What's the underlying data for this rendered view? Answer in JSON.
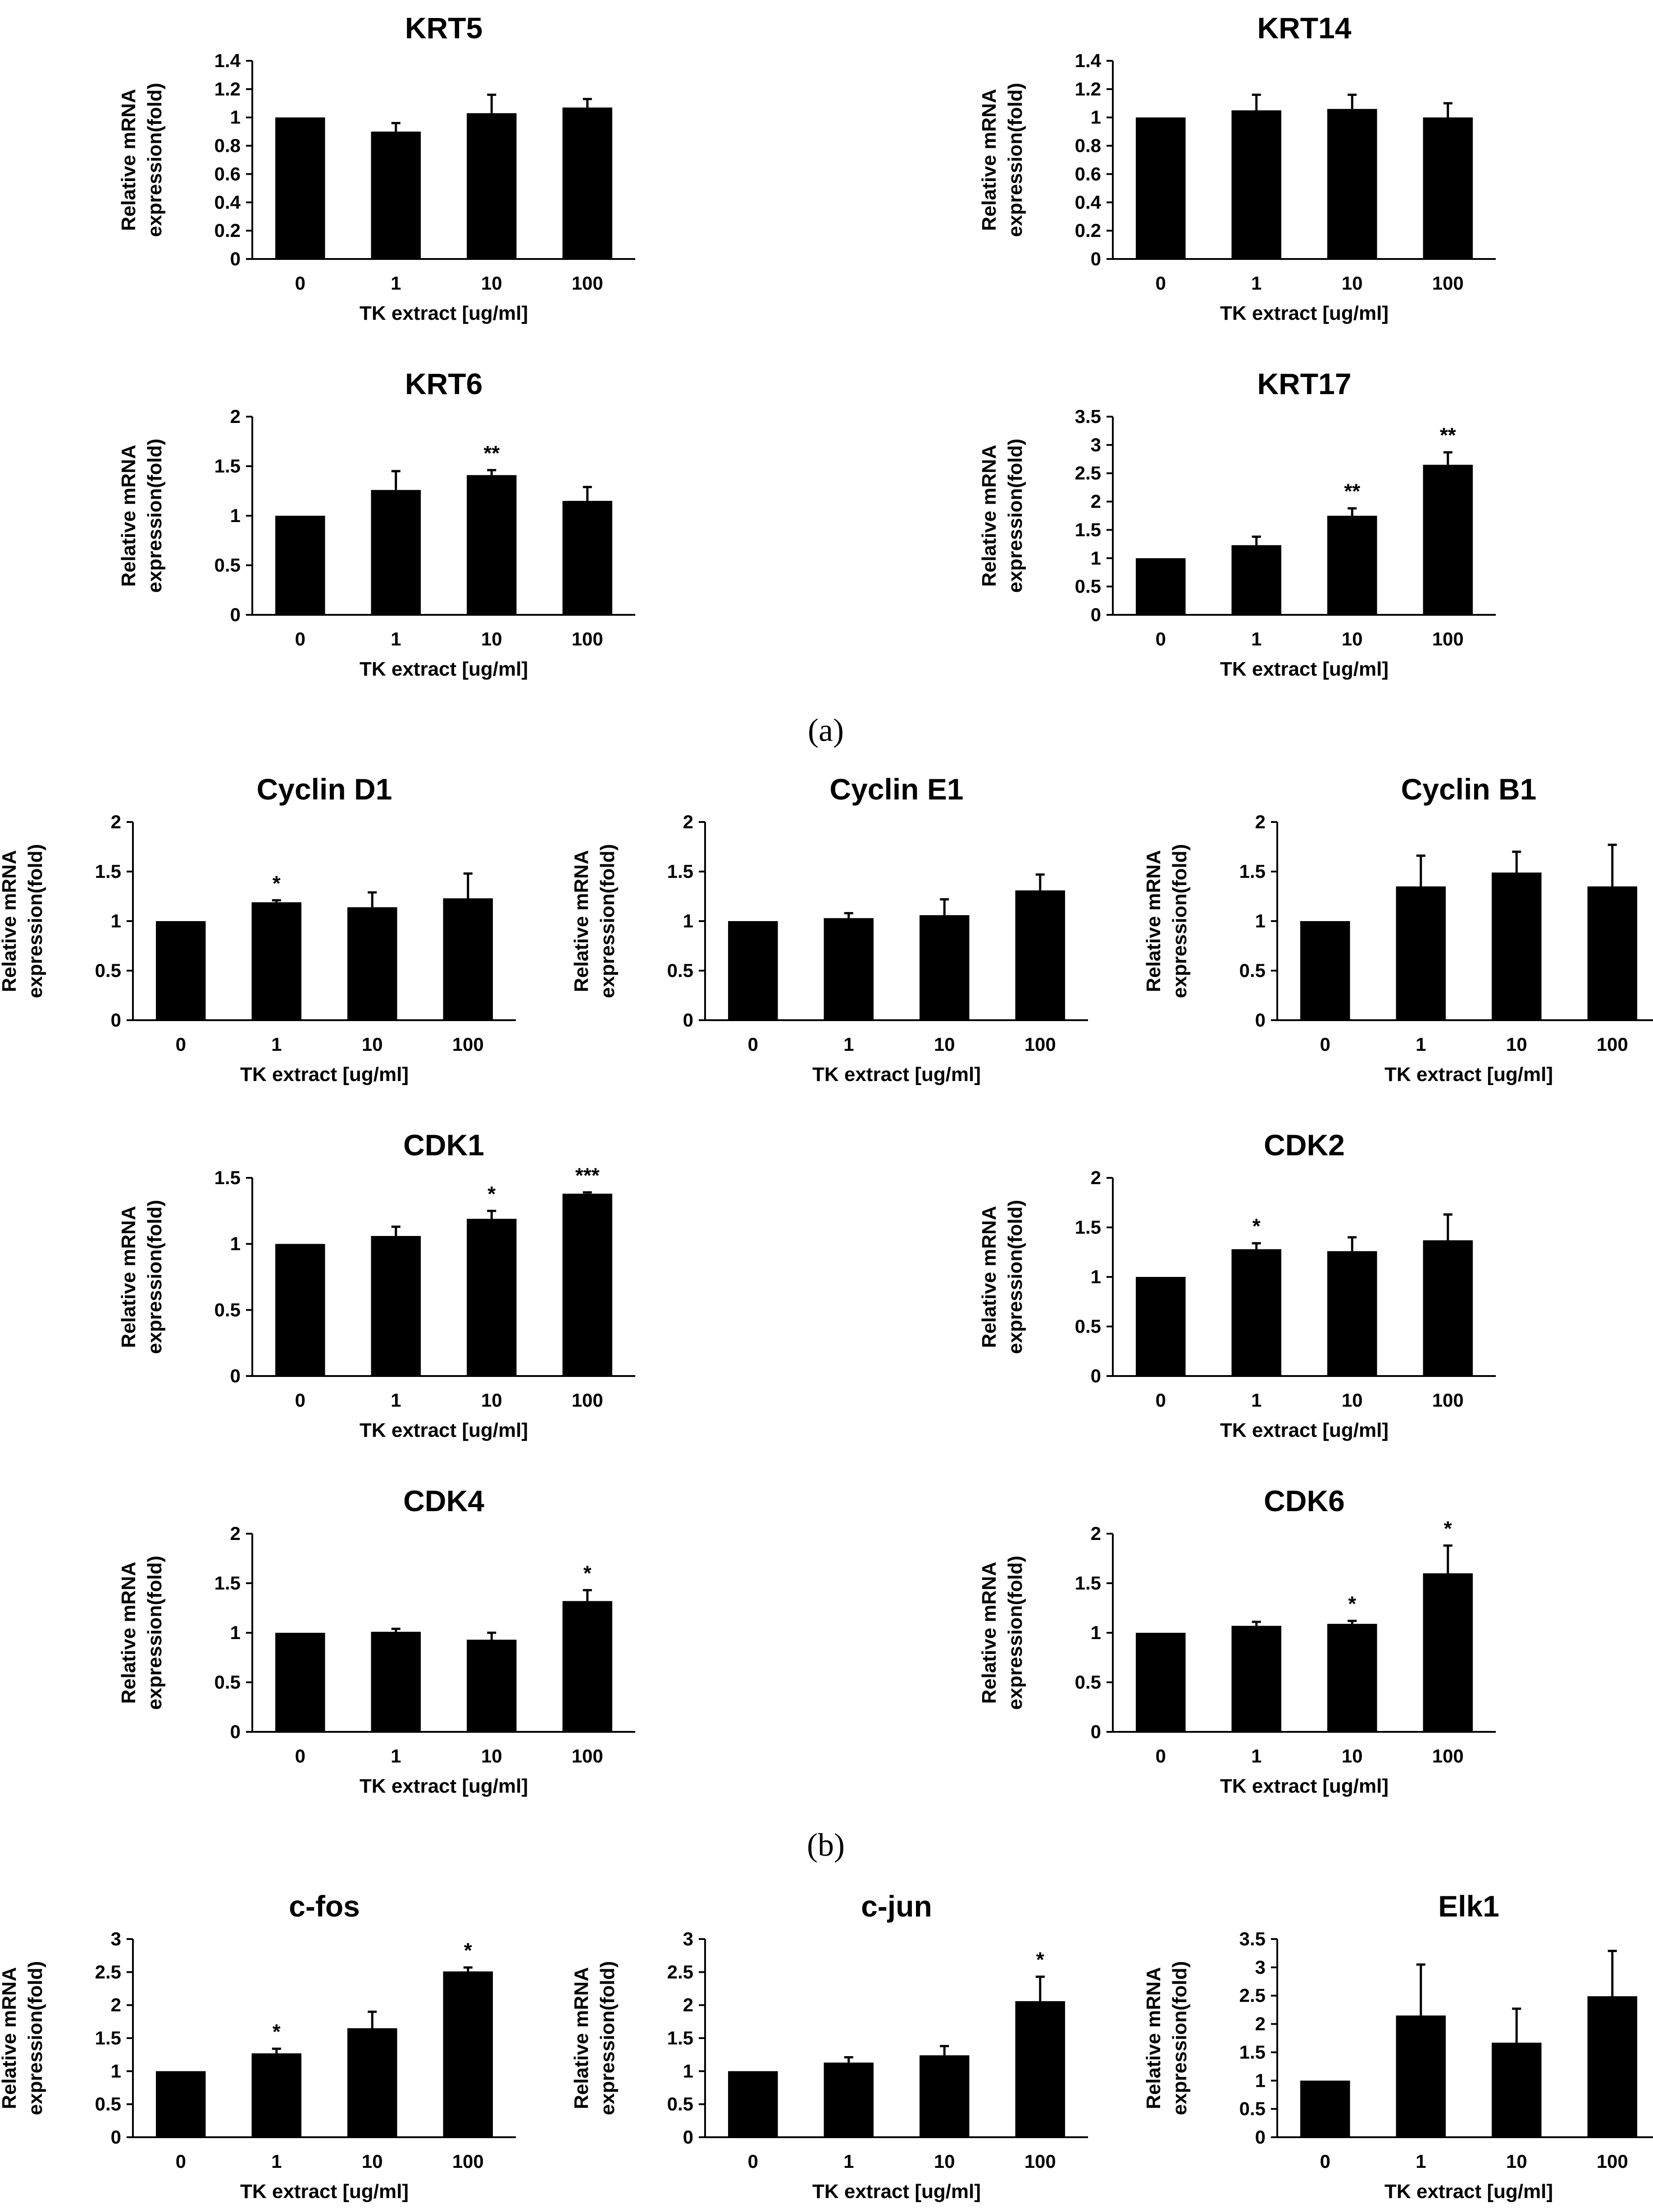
{
  "panel_labels": [
    "(a)",
    "(b)"
  ],
  "chart_data": [
    {
      "type": "bar",
      "title": "KRT5",
      "categories": [
        "0",
        "1",
        "10",
        "100"
      ],
      "values": [
        1.0,
        0.9,
        1.03,
        1.07
      ],
      "errors": [
        0.0,
        0.06,
        0.13,
        0.06
      ],
      "significance": [
        "",
        "",
        "",
        ""
      ],
      "ylim": [
        0,
        1.4
      ],
      "yticks": [
        "0",
        "0.2",
        "0.4",
        "0.6",
        "0.8",
        "1",
        "1.2",
        "1.4"
      ],
      "ylabel_line1": "Relative mRNA",
      "ylabel_line2": "expression(fold)",
      "xlabel": "TK extract [ug/ml]"
    },
    {
      "type": "bar",
      "title": "KRT14",
      "categories": [
        "0",
        "1",
        "10",
        "100"
      ],
      "values": [
        1.0,
        1.05,
        1.06,
        1.0
      ],
      "errors": [
        0.0,
        0.11,
        0.1,
        0.1
      ],
      "significance": [
        "",
        "",
        "",
        ""
      ],
      "ylim": [
        0,
        1.4
      ],
      "yticks": [
        "0",
        "0.2",
        "0.4",
        "0.6",
        "0.8",
        "1",
        "1.2",
        "1.4"
      ],
      "ylabel_line1": "Relative mRNA",
      "ylabel_line2": "expression(fold)",
      "xlabel": "TK extract [ug/ml]"
    },
    {
      "type": "bar",
      "title": "KRT6",
      "categories": [
        "0",
        "1",
        "10",
        "100"
      ],
      "values": [
        1.0,
        1.26,
        1.41,
        1.15
      ],
      "errors": [
        0.0,
        0.19,
        0.05,
        0.14
      ],
      "significance": [
        "",
        "",
        "**",
        ""
      ],
      "ylim": [
        0,
        2
      ],
      "yticks": [
        "0",
        "0.5",
        "1",
        "1.5",
        "2"
      ],
      "ylabel_line1": "Relative mRNA",
      "ylabel_line2": "expression(fold)",
      "xlabel": "TK extract [ug/ml]"
    },
    {
      "type": "bar",
      "title": "KRT17",
      "categories": [
        "0",
        "1",
        "10",
        "100"
      ],
      "values": [
        1.0,
        1.23,
        1.75,
        2.65
      ],
      "errors": [
        0.0,
        0.15,
        0.13,
        0.22
      ],
      "significance": [
        "",
        "",
        "**",
        "**"
      ],
      "ylim": [
        0,
        3.5
      ],
      "yticks": [
        "0",
        "0.5",
        "1",
        "1.5",
        "2",
        "2.5",
        "3",
        "3.5"
      ],
      "ylabel_line1": "Relative mRNA",
      "ylabel_line2": "expression(fold)",
      "xlabel": "TK extract [ug/ml]"
    },
    {
      "type": "bar",
      "title": "Cyclin D1",
      "categories": [
        "0",
        "1",
        "10",
        "100"
      ],
      "values": [
        1.0,
        1.19,
        1.14,
        1.23
      ],
      "errors": [
        0.0,
        0.02,
        0.15,
        0.25
      ],
      "significance": [
        "",
        "*",
        "",
        ""
      ],
      "ylim": [
        0,
        2
      ],
      "yticks": [
        "0",
        "0.5",
        "1",
        "1.5",
        "2"
      ],
      "ylabel_line1": "Relative mRNA",
      "ylabel_line2": "expression(fold)",
      "xlabel": "TK extract [ug/ml]"
    },
    {
      "type": "bar",
      "title": "Cyclin E1",
      "categories": [
        "0",
        "1",
        "10",
        "100"
      ],
      "values": [
        1.0,
        1.03,
        1.06,
        1.31
      ],
      "errors": [
        0.0,
        0.05,
        0.16,
        0.16
      ],
      "significance": [
        "",
        "",
        "",
        ""
      ],
      "ylim": [
        0,
        2
      ],
      "yticks": [
        "0",
        "0.5",
        "1",
        "1.5",
        "2"
      ],
      "ylabel_line1": "Relative mRNA",
      "ylabel_line2": "expression(fold)",
      "xlabel": "TK extract [ug/ml]"
    },
    {
      "type": "bar",
      "title": "Cyclin B1",
      "categories": [
        "0",
        "1",
        "10",
        "100"
      ],
      "values": [
        1.0,
        1.35,
        1.49,
        1.35
      ],
      "errors": [
        0.0,
        0.31,
        0.21,
        0.42
      ],
      "significance": [
        "",
        "",
        "",
        ""
      ],
      "ylim": [
        0,
        2
      ],
      "yticks": [
        "0",
        "0.5",
        "1",
        "1.5",
        "2"
      ],
      "ylabel_line1": "Relative mRNA",
      "ylabel_line2": "expression(fold)",
      "xlabel": "TK extract [ug/ml]"
    },
    {
      "type": "bar",
      "title": "CDK1",
      "categories": [
        "0",
        "1",
        "10",
        "100"
      ],
      "values": [
        1.0,
        1.06,
        1.19,
        1.38
      ],
      "errors": [
        0.0,
        0.07,
        0.06,
        0.01
      ],
      "significance": [
        "",
        "",
        "*",
        "***"
      ],
      "ylim": [
        0,
        1.5
      ],
      "yticks": [
        "0",
        "0.5",
        "1",
        "1.5"
      ],
      "ylabel_line1": "Relative mRNA",
      "ylabel_line2": "expression(fold)",
      "xlabel": "TK extract [ug/ml]"
    },
    {
      "type": "bar",
      "title": "CDK2",
      "categories": [
        "0",
        "1",
        "10",
        "100"
      ],
      "values": [
        1.0,
        1.28,
        1.26,
        1.37
      ],
      "errors": [
        0.0,
        0.06,
        0.14,
        0.26
      ],
      "significance": [
        "",
        "*",
        "",
        ""
      ],
      "ylim": [
        0,
        2
      ],
      "yticks": [
        "0",
        "0.5",
        "1",
        "1.5",
        "2"
      ],
      "ylabel_line1": "Relative mRNA",
      "ylabel_line2": "expression(fold)",
      "xlabel": "TK extract [ug/ml]"
    },
    {
      "type": "bar",
      "title": "CDK4",
      "categories": [
        "0",
        "1",
        "10",
        "100"
      ],
      "values": [
        1.0,
        1.01,
        0.93,
        1.32
      ],
      "errors": [
        0.0,
        0.03,
        0.07,
        0.11
      ],
      "significance": [
        "",
        "",
        "",
        "*"
      ],
      "ylim": [
        0,
        2
      ],
      "yticks": [
        "0",
        "0.5",
        "1",
        "1.5",
        "2"
      ],
      "ylabel_line1": "Relative mRNA",
      "ylabel_line2": "expression(fold)",
      "xlabel": "TK extract [ug/ml]"
    },
    {
      "type": "bar",
      "title": "CDK6",
      "categories": [
        "0",
        "1",
        "10",
        "100"
      ],
      "values": [
        1.0,
        1.07,
        1.09,
        1.6
      ],
      "errors": [
        0.0,
        0.04,
        0.03,
        0.28
      ],
      "significance": [
        "",
        "",
        "*",
        "*"
      ],
      "ylim": [
        0,
        2
      ],
      "yticks": [
        "0",
        "0.5",
        "1",
        "1.5",
        "2"
      ],
      "ylabel_line1": "Relative mRNA",
      "ylabel_line2": "expression(fold)",
      "xlabel": "TK extract [ug/ml]"
    },
    {
      "type": "bar",
      "title": "c-fos",
      "categories": [
        "0",
        "1",
        "10",
        "100"
      ],
      "values": [
        1.0,
        1.27,
        1.65,
        2.51
      ],
      "errors": [
        0.0,
        0.07,
        0.25,
        0.06
      ],
      "significance": [
        "",
        "*",
        "",
        "*"
      ],
      "ylim": [
        0,
        3
      ],
      "yticks": [
        "0",
        "0.5",
        "1",
        "1.5",
        "2",
        "2.5",
        "3"
      ],
      "ylabel_line1": "Relative mRNA",
      "ylabel_line2": "expression(fold)",
      "xlabel": "TK extract [ug/ml]"
    },
    {
      "type": "bar",
      "title": "c-jun",
      "categories": [
        "0",
        "1",
        "10",
        "100"
      ],
      "values": [
        1.0,
        1.13,
        1.24,
        2.06
      ],
      "errors": [
        0.0,
        0.08,
        0.14,
        0.37
      ],
      "significance": [
        "",
        "",
        "",
        "*"
      ],
      "ylim": [
        0,
        3
      ],
      "yticks": [
        "0",
        "0.5",
        "1",
        "1.5",
        "2",
        "2.5",
        "3"
      ],
      "ylabel_line1": "Relative mRNA",
      "ylabel_line2": "expression(fold)",
      "xlabel": "TK extract [ug/ml]"
    },
    {
      "type": "bar",
      "title": "Elk1",
      "categories": [
        "0",
        "1",
        "10",
        "100"
      ],
      "values": [
        1.0,
        2.15,
        1.67,
        2.49
      ],
      "errors": [
        0.0,
        0.9,
        0.6,
        0.8
      ],
      "significance": [
        "",
        "",
        "",
        ""
      ],
      "ylim": [
        0,
        3.5
      ],
      "yticks": [
        "0",
        "0.5",
        "1",
        "1.5",
        "2",
        "2.5",
        "3",
        "3.5"
      ],
      "ylabel_line1": "Relative mRNA",
      "ylabel_line2": "expression(fold)",
      "xlabel": "TK extract [ug/ml]"
    }
  ]
}
